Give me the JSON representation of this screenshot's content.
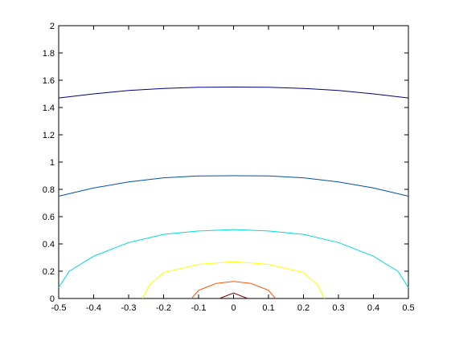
{
  "chart_data": {
    "type": "line",
    "title": "",
    "xlabel": "",
    "ylabel": "",
    "xlim": [
      -0.5,
      0.5
    ],
    "ylim": [
      0,
      2
    ],
    "x_ticks": [
      -0.5,
      -0.4,
      -0.3,
      -0.2,
      -0.1,
      0,
      0.1,
      0.2,
      0.3,
      0.4,
      0.5
    ],
    "x_tick_labels": [
      "-0.5",
      "-0.4",
      "-0.3",
      "-0.2",
      "-0.1",
      "0",
      "0.1",
      "0.2",
      "0.3",
      "0.4",
      "0.5"
    ],
    "y_ticks": [
      0,
      0.2,
      0.4,
      0.6,
      0.8,
      1,
      1.2,
      1.4,
      1.6,
      1.8,
      2
    ],
    "y_tick_labels": [
      "0",
      "0.2",
      "0.4",
      "0.6",
      "0.8",
      "1",
      "1.2",
      "1.4",
      "1.6",
      "1.8",
      "2"
    ],
    "grid": false,
    "legend": "none",
    "series": [
      {
        "color": "#00007f",
        "x": [
          -0.5,
          -0.4,
          -0.3,
          -0.2,
          -0.1,
          0,
          0.1,
          0.2,
          0.3,
          0.4,
          0.5
        ],
        "y": [
          1.47,
          1.5,
          1.525,
          1.54,
          1.548,
          1.55,
          1.548,
          1.54,
          1.525,
          1.5,
          1.47
        ]
      },
      {
        "color": "#0050aa",
        "x": [
          -0.5,
          -0.4,
          -0.3,
          -0.2,
          -0.1,
          0,
          0.1,
          0.2,
          0.3,
          0.4,
          0.5
        ],
        "y": [
          0.75,
          0.81,
          0.855,
          0.885,
          0.898,
          0.9,
          0.898,
          0.885,
          0.855,
          0.81,
          0.75
        ]
      },
      {
        "color": "#00d9d9",
        "x": [
          -0.5,
          -0.47,
          -0.4,
          -0.3,
          -0.2,
          -0.1,
          0,
          0.1,
          0.2,
          0.3,
          0.4,
          0.47,
          0.5
        ],
        "y": [
          0.08,
          0.2,
          0.31,
          0.41,
          0.47,
          0.495,
          0.505,
          0.495,
          0.47,
          0.41,
          0.31,
          0.2,
          0.08
        ]
      },
      {
        "color": "#ffff00",
        "x": [
          -0.26,
          -0.24,
          -0.2,
          -0.1,
          0,
          0.1,
          0.2,
          0.24,
          0.26
        ],
        "y": [
          0,
          0.1,
          0.19,
          0.25,
          0.27,
          0.25,
          0.19,
          0.1,
          0
        ]
      },
      {
        "color": "#ff5500",
        "x": [
          -0.12,
          -0.1,
          -0.05,
          0,
          0.05,
          0.1,
          0.12
        ],
        "y": [
          0,
          0.06,
          0.11,
          0.125,
          0.11,
          0.06,
          0
        ]
      },
      {
        "color": "#800000",
        "x": [
          -0.04,
          0,
          0.04
        ],
        "y": [
          0,
          0.04,
          0
        ]
      }
    ]
  }
}
